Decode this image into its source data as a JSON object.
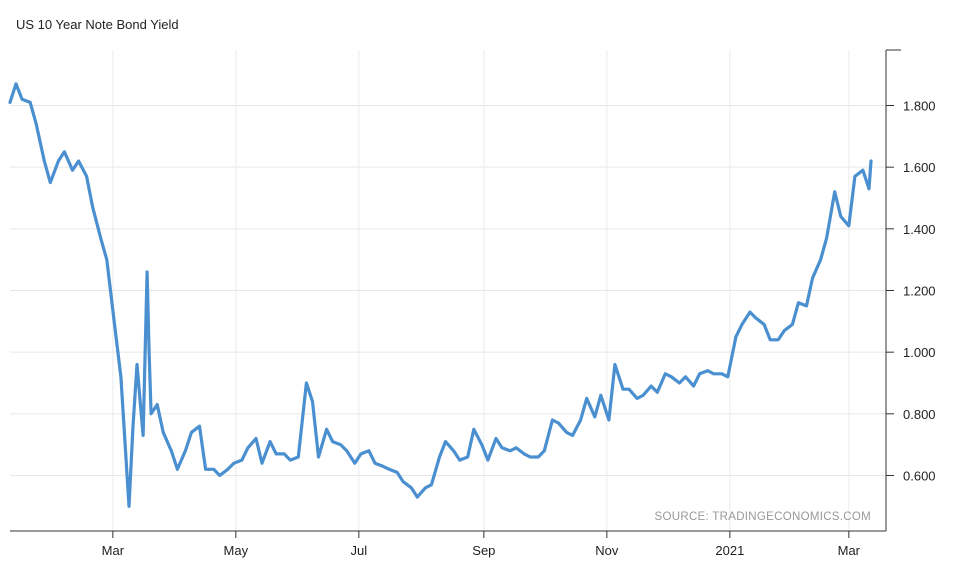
{
  "chart_data": {
    "type": "line",
    "title": "US 10 Year Note Bond Yield",
    "source": "SOURCE: TRADINGECONOMICS.COM",
    "xlabel": "",
    "ylabel": "",
    "x_ticks": [
      "Mar",
      "May",
      "Jul",
      "Sep",
      "Nov",
      "2021",
      "Mar"
    ],
    "y_ticks": [
      "0.600",
      "0.800",
      "1.000",
      "1.200",
      "1.400",
      "1.600",
      "1.800"
    ],
    "ylim": [
      0.42,
      1.98
    ],
    "grid": true,
    "axis_side": "right",
    "line_color": "#4a8fcf",
    "series": [
      {
        "x": [
          "2020-01-10",
          "2020-01-13",
          "2020-01-16",
          "2020-01-20",
          "2020-01-23",
          "2020-01-27",
          "2020-01-30",
          "2020-02-03",
          "2020-02-06",
          "2020-02-10",
          "2020-02-13",
          "2020-02-17",
          "2020-02-20",
          "2020-02-24",
          "2020-02-27",
          "2020-03-02",
          "2020-03-05",
          "2020-03-09",
          "2020-03-11",
          "2020-03-13",
          "2020-03-16",
          "2020-03-18",
          "2020-03-19",
          "2020-03-20",
          "2020-03-23",
          "2020-03-26",
          "2020-03-30",
          "2020-04-02",
          "2020-04-06",
          "2020-04-09",
          "2020-04-13",
          "2020-04-16",
          "2020-04-20",
          "2020-04-23",
          "2020-04-27",
          "2020-04-30",
          "2020-05-04",
          "2020-05-07",
          "2020-05-11",
          "2020-05-14",
          "2020-05-18",
          "2020-05-21",
          "2020-05-25",
          "2020-05-28",
          "2020-06-01",
          "2020-06-05",
          "2020-06-08",
          "2020-06-11",
          "2020-06-15",
          "2020-06-18",
          "2020-06-22",
          "2020-06-25",
          "2020-06-29",
          "2020-07-02",
          "2020-07-06",
          "2020-07-09",
          "2020-07-13",
          "2020-07-16",
          "2020-07-20",
          "2020-07-23",
          "2020-07-27",
          "2020-07-30",
          "2020-08-03",
          "2020-08-06",
          "2020-08-10",
          "2020-08-13",
          "2020-08-17",
          "2020-08-20",
          "2020-08-24",
          "2020-08-27",
          "2020-08-31",
          "2020-09-03",
          "2020-09-07",
          "2020-09-10",
          "2020-09-14",
          "2020-09-17",
          "2020-09-21",
          "2020-09-24",
          "2020-09-28",
          "2020-10-01",
          "2020-10-05",
          "2020-10-08",
          "2020-10-12",
          "2020-10-15",
          "2020-10-19",
          "2020-10-22",
          "2020-10-26",
          "2020-10-29",
          "2020-11-02",
          "2020-11-05",
          "2020-11-09",
          "2020-11-12",
          "2020-11-16",
          "2020-11-19",
          "2020-11-23",
          "2020-11-26",
          "2020-11-30",
          "2020-12-03",
          "2020-12-07",
          "2020-12-10",
          "2020-12-14",
          "2020-12-17",
          "2020-12-21",
          "2020-12-24",
          "2020-12-28",
          "2020-12-31",
          "2021-01-04",
          "2021-01-07",
          "2021-01-11",
          "2021-01-14",
          "2021-01-18",
          "2021-01-21",
          "2021-01-25",
          "2021-01-28",
          "2021-02-01",
          "2021-02-04",
          "2021-02-08",
          "2021-02-11",
          "2021-02-15",
          "2021-02-18",
          "2021-02-22",
          "2021-02-25",
          "2021-03-01",
          "2021-03-04",
          "2021-03-08",
          "2021-03-11",
          "2021-03-12"
        ],
        "values": [
          1.81,
          1.87,
          1.82,
          1.81,
          1.74,
          1.62,
          1.55,
          1.62,
          1.65,
          1.59,
          1.62,
          1.57,
          1.47,
          1.37,
          1.3,
          1.08,
          0.92,
          0.5,
          0.76,
          0.96,
          0.73,
          1.26,
          1.0,
          0.8,
          0.83,
          0.74,
          0.68,
          0.62,
          0.68,
          0.74,
          0.76,
          0.62,
          0.62,
          0.6,
          0.62,
          0.64,
          0.65,
          0.69,
          0.72,
          0.64,
          0.71,
          0.67,
          0.67,
          0.65,
          0.66,
          0.9,
          0.84,
          0.66,
          0.75,
          0.71,
          0.7,
          0.68,
          0.64,
          0.67,
          0.68,
          0.64,
          0.63,
          0.62,
          0.61,
          0.58,
          0.56,
          0.53,
          0.56,
          0.57,
          0.66,
          0.71,
          0.68,
          0.65,
          0.66,
          0.75,
          0.7,
          0.65,
          0.72,
          0.69,
          0.68,
          0.69,
          0.67,
          0.66,
          0.66,
          0.68,
          0.78,
          0.77,
          0.74,
          0.73,
          0.78,
          0.85,
          0.79,
          0.86,
          0.78,
          0.96,
          0.88,
          0.88,
          0.85,
          0.86,
          0.89,
          0.87,
          0.93,
          0.92,
          0.9,
          0.92,
          0.89,
          0.93,
          0.94,
          0.93,
          0.93,
          0.92,
          1.05,
          1.09,
          1.13,
          1.11,
          1.09,
          1.04,
          1.04,
          1.07,
          1.09,
          1.16,
          1.15,
          1.24,
          1.3,
          1.37,
          1.52,
          1.44,
          1.41,
          1.57,
          1.59,
          1.53,
          1.62
        ]
      }
    ]
  }
}
